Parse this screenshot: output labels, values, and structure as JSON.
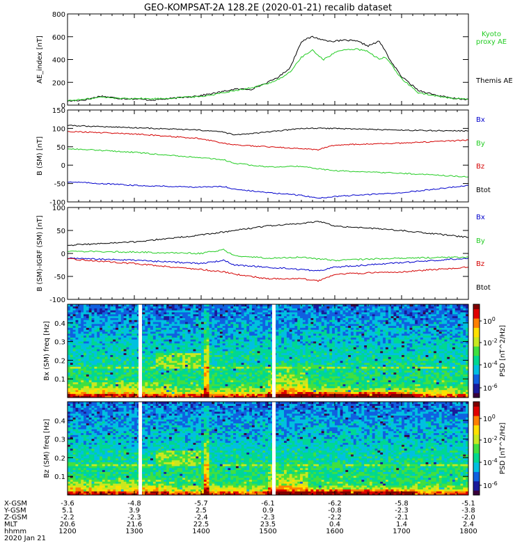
{
  "title": "GEO-KOMPSAT-2A 128.2E (2020-01-21) recalib dataset",
  "colors": {
    "black": "#000000",
    "red": "#d40000",
    "green": "#22cc22",
    "blue": "#0000cc",
    "colormap": [
      "#3a003a",
      "#1a1a9a",
      "#1060e0",
      "#00c0e0",
      "#00d890",
      "#40e040",
      "#c8e820",
      "#ffe000",
      "#ff8000",
      "#e00000",
      "#800000"
    ]
  },
  "chart_data": [
    {
      "type": "line",
      "id": "ae",
      "ylabel": "AE_index [nT]",
      "ylim": [
        0,
        800
      ],
      "yticks": [
        "0",
        "200",
        "400",
        "600",
        "800"
      ],
      "legend": [
        {
          "name": "Kyoto proxy AE",
          "color": "green"
        },
        {
          "name": "Themis AE",
          "color": "black"
        }
      ],
      "series": [
        {
          "name": "Themis AE",
          "color": "black",
          "x": [
            1200,
            1215,
            1230,
            1245,
            1300,
            1315,
            1330,
            1345,
            1400,
            1415,
            1430,
            1445,
            1500,
            1510,
            1520,
            1530,
            1540,
            1550,
            1600,
            1610,
            1620,
            1630,
            1640,
            1645,
            1650,
            1700,
            1715,
            1730,
            1745,
            1800
          ],
          "y": [
            35,
            45,
            80,
            60,
            55,
            45,
            55,
            70,
            85,
            110,
            140,
            140,
            200,
            250,
            330,
            560,
            600,
            570,
            560,
            570,
            560,
            520,
            560,
            480,
            390,
            250,
            130,
            90,
            60,
            50
          ]
        },
        {
          "name": "Kyoto proxy AE",
          "color": "green",
          "x": [
            1200,
            1215,
            1230,
            1245,
            1300,
            1315,
            1330,
            1345,
            1400,
            1415,
            1430,
            1445,
            1500,
            1510,
            1520,
            1530,
            1540,
            1550,
            1600,
            1610,
            1620,
            1630,
            1640,
            1645,
            1650,
            1700,
            1715,
            1730,
            1745,
            1800
          ],
          "y": [
            40,
            50,
            70,
            60,
            60,
            55,
            60,
            70,
            75,
            100,
            130,
            150,
            190,
            230,
            290,
            420,
            480,
            400,
            460,
            490,
            490,
            470,
            400,
            420,
            370,
            230,
            110,
            80,
            60,
            55
          ]
        }
      ]
    },
    {
      "type": "line",
      "id": "bsm",
      "ylabel": "B (SM) [nT]",
      "ylim": [
        -100,
        150
      ],
      "yticks": [
        "-100",
        "-50",
        "0",
        "50",
        "100",
        "150"
      ],
      "legend": [
        {
          "name": "Bx",
          "color": "blue"
        },
        {
          "name": "By",
          "color": "green"
        },
        {
          "name": "Bz",
          "color": "red"
        },
        {
          "name": "Btot",
          "color": "black"
        }
      ],
      "series": [
        {
          "name": "Btot",
          "color": "black",
          "x": [
            1200,
            1300,
            1400,
            1420,
            1430,
            1500,
            1530,
            1600,
            1700,
            1800
          ],
          "y": [
            108,
            102,
            95,
            90,
            82,
            90,
            100,
            100,
            95,
            93
          ]
        },
        {
          "name": "Bz",
          "color": "red",
          "x": [
            1200,
            1300,
            1400,
            1420,
            1430,
            1500,
            1530,
            1545,
            1600,
            1700,
            1800
          ],
          "y": [
            92,
            85,
            72,
            60,
            55,
            50,
            45,
            42,
            55,
            60,
            68
          ]
        },
        {
          "name": "By",
          "color": "green",
          "x": [
            1200,
            1300,
            1400,
            1420,
            1430,
            1500,
            1530,
            1545,
            1600,
            1700,
            1800
          ],
          "y": [
            45,
            35,
            20,
            15,
            5,
            -5,
            -3,
            -10,
            -15,
            -22,
            -32
          ]
        },
        {
          "name": "Bx",
          "color": "blue",
          "x": [
            1200,
            1300,
            1400,
            1420,
            1430,
            1500,
            1530,
            1545,
            1600,
            1700,
            1800
          ],
          "y": [
            -45,
            -55,
            -60,
            -58,
            -65,
            -75,
            -82,
            -90,
            -85,
            -75,
            -55
          ]
        }
      ]
    },
    {
      "type": "line",
      "id": "bdiff",
      "ylabel": "B (SM)-IGRF (SM) [nT]",
      "ylim": [
        -100,
        100
      ],
      "yticks": [
        "-100",
        "-50",
        "0",
        "50",
        "100"
      ],
      "legend": [
        {
          "name": "Bx",
          "color": "blue"
        },
        {
          "name": "By",
          "color": "green"
        },
        {
          "name": "Bz",
          "color": "red"
        },
        {
          "name": "Btot",
          "color": "black"
        }
      ],
      "series": [
        {
          "name": "Btot",
          "color": "black",
          "x": [
            1200,
            1300,
            1400,
            1430,
            1500,
            1530,
            1545,
            1600,
            1700,
            1800
          ],
          "y": [
            18,
            25,
            40,
            50,
            60,
            65,
            70,
            60,
            50,
            35
          ]
        },
        {
          "name": "By",
          "color": "green",
          "x": [
            1200,
            1300,
            1400,
            1420,
            1430,
            1500,
            1530,
            1545,
            1600,
            1700,
            1800
          ],
          "y": [
            5,
            3,
            0,
            8,
            -5,
            -10,
            -8,
            -12,
            -15,
            -10,
            -8
          ]
        },
        {
          "name": "Bx",
          "color": "blue",
          "x": [
            1200,
            1300,
            1400,
            1420,
            1430,
            1500,
            1530,
            1545,
            1600,
            1700,
            1800
          ],
          "y": [
            -10,
            -15,
            -22,
            -15,
            -25,
            -30,
            -35,
            -38,
            -30,
            -20,
            -10
          ]
        },
        {
          "name": "Bz",
          "color": "red",
          "x": [
            1200,
            1300,
            1400,
            1420,
            1430,
            1500,
            1530,
            1545,
            1600,
            1700,
            1800
          ],
          "y": [
            -12,
            -22,
            -35,
            -40,
            -45,
            -55,
            -55,
            -60,
            -45,
            -40,
            -30
          ]
        }
      ]
    },
    {
      "type": "heatmap",
      "id": "bx-spec",
      "ylabel": "Bx (SM) freq [Hz]",
      "ylim": [
        0,
        0.5
      ],
      "yticks": [
        "0.1",
        "0.2",
        "0.3",
        "0.4"
      ],
      "colorbar_label": "PSD [nT^2/Hz]",
      "colorbar_ticks": [
        "10^0",
        "10^-2",
        "10^-4",
        "10^-6"
      ],
      "data_gaps": [
        1305,
        1505
      ]
    },
    {
      "type": "heatmap",
      "id": "bz-spec",
      "ylabel": "Bz (SM) freq [Hz]",
      "ylim": [
        0,
        0.5
      ],
      "yticks": [
        "0.1",
        "0.2",
        "0.3",
        "0.4"
      ],
      "colorbar_label": "PSD [nT^2/Hz]",
      "colorbar_ticks": [
        "10^0",
        "10^-2",
        "10^-4",
        "10^-6"
      ],
      "data_gaps": [
        1305,
        1505
      ]
    }
  ],
  "xaxis": {
    "labels": [
      "X-GSM",
      "Y-GSM",
      "Z-GSM",
      "MLT",
      "hhmm",
      "2020 Jan 21"
    ],
    "columns": [
      {
        "time": 1200,
        "values": [
          "-3.6",
          "5.1",
          "-2.2",
          "20.6",
          "1200"
        ]
      },
      {
        "time": 1300,
        "values": [
          "-4.8",
          "3.9",
          "-2.3",
          "21.6",
          "1300"
        ]
      },
      {
        "time": 1400,
        "values": [
          "-5.7",
          "2.5",
          "-2.4",
          "22.5",
          "1400"
        ]
      },
      {
        "time": 1500,
        "values": [
          "-6.1",
          "0.9",
          "-2.3",
          "23.5",
          "1500"
        ]
      },
      {
        "time": 1600,
        "values": [
          "-6.2",
          "-0.8",
          "-2.2",
          "0.4",
          "1600"
        ]
      },
      {
        "time": 1700,
        "values": [
          "-5.8",
          "-2.3",
          "-2.1",
          "1.4",
          "1700"
        ]
      },
      {
        "time": 1800,
        "values": [
          "-5.1",
          "-3.8",
          "-2.0",
          "2.4",
          "1800"
        ]
      }
    ]
  }
}
